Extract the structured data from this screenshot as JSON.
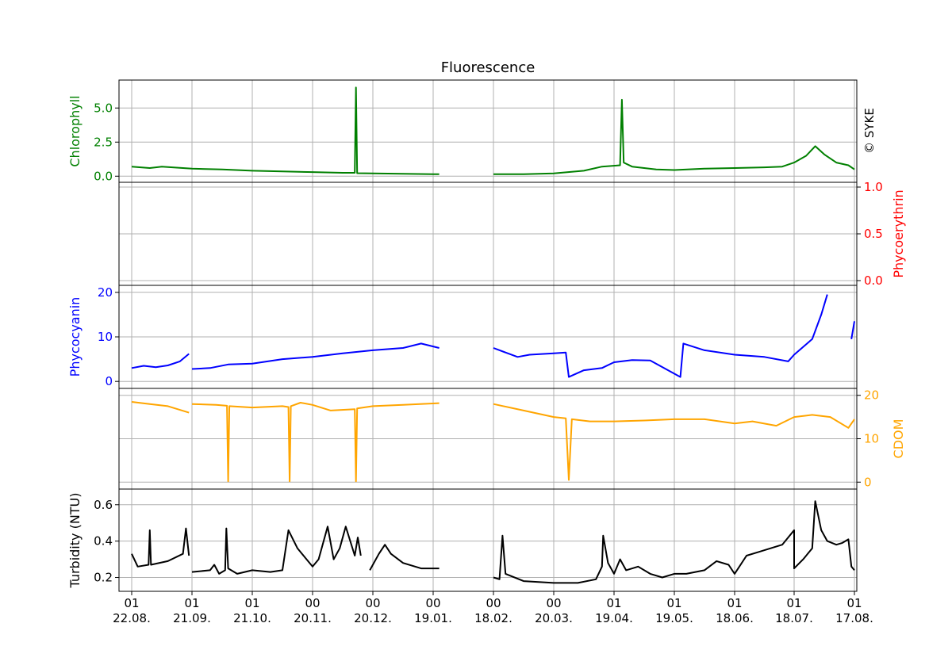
{
  "chart_data": {
    "type": "line",
    "title": "Fluorescence",
    "copyright": "© SYKE",
    "x_ticks": [
      {
        "top": "01",
        "bottom": "22.08."
      },
      {
        "top": "01",
        "bottom": "21.09."
      },
      {
        "top": "01",
        "bottom": "21.10."
      },
      {
        "top": "00",
        "bottom": "20.11."
      },
      {
        "top": "00",
        "bottom": "20.12."
      },
      {
        "top": "00",
        "bottom": "19.01."
      },
      {
        "top": "00",
        "bottom": "18.02."
      },
      {
        "top": "00",
        "bottom": "20.03."
      },
      {
        "top": "01",
        "bottom": "19.04."
      },
      {
        "top": "01",
        "bottom": "19.05."
      },
      {
        "top": "01",
        "bottom": "18.06."
      },
      {
        "top": "01",
        "bottom": "18.07."
      },
      {
        "top": "01",
        "bottom": "17.08."
      }
    ],
    "panels": [
      {
        "name": "Chlorophyll",
        "axis_label": "Chlorophyll",
        "color": "#008000",
        "axis_side": "left",
        "ylim": [
          -0.1,
          6.7
        ],
        "ticks": [
          {
            "v": 0.0,
            "label": "0.0"
          },
          {
            "v": 2.5,
            "label": "2.5"
          },
          {
            "v": 5.0,
            "label": "5.0"
          }
        ],
        "segments": [
          [
            [
              0,
              0.7
            ],
            [
              0.3,
              0.6
            ],
            [
              0.5,
              0.7
            ],
            [
              1.0,
              0.55
            ],
            [
              1.5,
              0.5
            ],
            [
              2.0,
              0.4
            ],
            [
              2.5,
              0.35
            ],
            [
              3.0,
              0.3
            ],
            [
              3.5,
              0.25
            ],
            [
              3.7,
              0.25
            ],
            [
              3.72,
              6.5
            ],
            [
              3.74,
              0.22
            ],
            [
              4.0,
              0.2
            ],
            [
              4.5,
              0.18
            ],
            [
              5.0,
              0.15
            ],
            [
              5.1,
              0.15
            ]
          ],
          [
            [
              6.0,
              0.15
            ],
            [
              6.5,
              0.15
            ],
            [
              7.0,
              0.2
            ],
            [
              7.5,
              0.4
            ],
            [
              7.8,
              0.7
            ],
            [
              8.1,
              0.8
            ],
            [
              8.13,
              5.6
            ],
            [
              8.16,
              1.0
            ],
            [
              8.3,
              0.7
            ],
            [
              8.7,
              0.5
            ],
            [
              9.0,
              0.45
            ],
            [
              9.5,
              0.55
            ],
            [
              10.0,
              0.6
            ],
            [
              10.5,
              0.65
            ],
            [
              10.8,
              0.7
            ],
            [
              11.0,
              1.0
            ],
            [
              11.2,
              1.5
            ],
            [
              11.35,
              2.2
            ],
            [
              11.5,
              1.6
            ],
            [
              11.7,
              1.0
            ],
            [
              11.9,
              0.8
            ],
            [
              12.0,
              0.5
            ]
          ]
        ]
      },
      {
        "name": "Phycoerythrin",
        "axis_label": "Phycoerythrin",
        "color": "#ff0000",
        "axis_side": "right",
        "ylim": [
          0.0,
          1.0
        ],
        "ticks": [
          {
            "v": 0.0,
            "label": "0.0"
          },
          {
            "v": 0.5,
            "label": "0.5"
          },
          {
            "v": 1.0,
            "label": "1.0"
          }
        ],
        "segments": []
      },
      {
        "name": "Phycocyanin",
        "axis_label": "Phycocyanin",
        "color": "#0000ff",
        "axis_side": "left",
        "ylim": [
          -0.5,
          20.5
        ],
        "ticks": [
          {
            "v": 0,
            "label": "0"
          },
          {
            "v": 10,
            "label": "10"
          },
          {
            "v": 20,
            "label": "20"
          }
        ],
        "segments": [
          [
            [
              0,
              3.0
            ],
            [
              0.2,
              3.5
            ],
            [
              0.4,
              3.2
            ],
            [
              0.6,
              3.6
            ],
            [
              0.8,
              4.5
            ],
            [
              0.95,
              6.2
            ]
          ],
          [
            [
              1.0,
              2.8
            ],
            [
              1.3,
              3.0
            ],
            [
              1.6,
              3.8
            ],
            [
              2.0,
              4.0
            ],
            [
              2.5,
              5.0
            ],
            [
              3.0,
              5.5
            ],
            [
              3.5,
              6.3
            ],
            [
              4.0,
              7.0
            ],
            [
              4.5,
              7.5
            ],
            [
              4.8,
              8.5
            ],
            [
              5.1,
              7.5
            ]
          ],
          [
            [
              6.0,
              7.5
            ],
            [
              6.2,
              6.5
            ],
            [
              6.4,
              5.5
            ],
            [
              6.6,
              6.0
            ],
            [
              7.0,
              6.3
            ],
            [
              7.2,
              6.5
            ],
            [
              7.25,
              1.0
            ],
            [
              7.5,
              2.5
            ],
            [
              7.8,
              3.0
            ],
            [
              8.0,
              4.3
            ],
            [
              8.3,
              4.8
            ],
            [
              8.6,
              4.7
            ],
            [
              9.1,
              1.0
            ],
            [
              9.15,
              8.5
            ],
            [
              9.5,
              7.0
            ],
            [
              10.0,
              6.0
            ],
            [
              10.5,
              5.5
            ],
            [
              10.9,
              4.5
            ],
            [
              11.0,
              6.0
            ],
            [
              11.3,
              9.5
            ],
            [
              11.45,
              15.0
            ],
            [
              11.55,
              19.5
            ]
          ],
          [
            [
              11.95,
              9.5
            ],
            [
              12.0,
              13.5
            ]
          ]
        ]
      },
      {
        "name": "CDOM",
        "axis_label": "CDOM",
        "color": "#ffa500",
        "axis_side": "right",
        "ylim": [
          -0.5,
          20.5
        ],
        "ticks": [
          {
            "v": 0,
            "label": "0"
          },
          {
            "v": 10,
            "label": "10"
          },
          {
            "v": 20,
            "label": "20"
          }
        ],
        "segments": [
          [
            [
              0,
              18.5
            ],
            [
              0.3,
              18.0
            ],
            [
              0.6,
              17.5
            ],
            [
              0.95,
              16.0
            ]
          ],
          [
            [
              1.0,
              18.0
            ],
            [
              1.4,
              17.8
            ],
            [
              1.58,
              17.6
            ],
            [
              1.6,
              0.2
            ],
            [
              1.62,
              17.5
            ],
            [
              2.0,
              17.2
            ],
            [
              2.5,
              17.5
            ],
            [
              2.6,
              17.3
            ],
            [
              2.62,
              0.2
            ],
            [
              2.64,
              17.5
            ],
            [
              2.8,
              18.3
            ],
            [
              3.0,
              17.8
            ],
            [
              3.3,
              16.5
            ],
            [
              3.7,
              16.8
            ],
            [
              3.72,
              0.2
            ],
            [
              3.74,
              17.0
            ],
            [
              4.0,
              17.5
            ],
            [
              4.5,
              17.8
            ],
            [
              5.1,
              18.2
            ]
          ],
          [
            [
              6.0,
              18.0
            ],
            [
              6.5,
              16.5
            ],
            [
              7.0,
              15.0
            ],
            [
              7.2,
              14.7
            ],
            [
              7.25,
              0.5
            ],
            [
              7.3,
              14.5
            ],
            [
              7.6,
              14.0
            ],
            [
              8.0,
              14.0
            ],
            [
              8.5,
              14.2
            ],
            [
              9.0,
              14.5
            ],
            [
              9.5,
              14.5
            ],
            [
              10.0,
              13.5
            ],
            [
              10.3,
              14.0
            ],
            [
              10.7,
              13.0
            ],
            [
              11.0,
              15.0
            ],
            [
              11.3,
              15.5
            ],
            [
              11.6,
              15.0
            ],
            [
              11.9,
              12.5
            ],
            [
              12.0,
              14.5
            ]
          ]
        ]
      },
      {
        "name": "Turbidity",
        "axis_label": "Turbidity (NTU)",
        "color": "#000000",
        "axis_side": "left",
        "ylim": [
          0.15,
          0.66
        ],
        "ticks": [
          {
            "v": 0.2,
            "label": "0.2"
          },
          {
            "v": 0.4,
            "label": "0.4"
          },
          {
            "v": 0.6,
            "label": "0.6"
          }
        ],
        "segments": [
          [
            [
              0,
              0.33
            ],
            [
              0.1,
              0.26
            ],
            [
              0.28,
              0.27
            ],
            [
              0.3,
              0.46
            ],
            [
              0.32,
              0.27
            ],
            [
              0.6,
              0.29
            ],
            [
              0.85,
              0.33
            ],
            [
              0.9,
              0.47
            ],
            [
              0.95,
              0.32
            ]
          ],
          [
            [
              1.0,
              0.23
            ],
            [
              1.3,
              0.24
            ],
            [
              1.37,
              0.27
            ],
            [
              1.45,
              0.22
            ],
            [
              1.55,
              0.24
            ],
            [
              1.57,
              0.47
            ],
            [
              1.6,
              0.25
            ],
            [
              1.75,
              0.22
            ],
            [
              2.0,
              0.24
            ],
            [
              2.3,
              0.23
            ],
            [
              2.5,
              0.24
            ],
            [
              2.6,
              0.46
            ],
            [
              2.75,
              0.36
            ],
            [
              2.9,
              0.3
            ],
            [
              3.0,
              0.26
            ],
            [
              3.1,
              0.3
            ],
            [
              3.25,
              0.48
            ],
            [
              3.35,
              0.3
            ],
            [
              3.45,
              0.36
            ],
            [
              3.55,
              0.48
            ],
            [
              3.7,
              0.32
            ],
            [
              3.75,
              0.42
            ],
            [
              3.8,
              0.32
            ]
          ],
          [
            [
              3.95,
              0.24
            ],
            [
              4.1,
              0.33
            ],
            [
              4.2,
              0.38
            ],
            [
              4.3,
              0.33
            ],
            [
              4.5,
              0.28
            ],
            [
              4.8,
              0.25
            ],
            [
              5.1,
              0.25
            ]
          ],
          [
            [
              6.0,
              0.2
            ],
            [
              6.1,
              0.19
            ],
            [
              6.15,
              0.43
            ],
            [
              6.2,
              0.22
            ],
            [
              6.5,
              0.18
            ],
            [
              7.0,
              0.17
            ],
            [
              7.4,
              0.17
            ],
            [
              7.7,
              0.19
            ],
            [
              7.8,
              0.26
            ],
            [
              7.82,
              0.43
            ],
            [
              7.9,
              0.28
            ],
            [
              8.0,
              0.22
            ],
            [
              8.1,
              0.3
            ],
            [
              8.2,
              0.24
            ],
            [
              8.4,
              0.26
            ],
            [
              8.6,
              0.22
            ],
            [
              8.8,
              0.2
            ],
            [
              9.0,
              0.22
            ],
            [
              9.2,
              0.22
            ],
            [
              9.5,
              0.24
            ],
            [
              9.7,
              0.29
            ],
            [
              9.9,
              0.27
            ],
            [
              10.0,
              0.22
            ],
            [
              10.2,
              0.32
            ],
            [
              10.4,
              0.34
            ],
            [
              10.6,
              0.36
            ],
            [
              10.8,
              0.38
            ],
            [
              11.0,
              0.46
            ],
            [
              11.0,
              0.25
            ],
            [
              11.15,
              0.3
            ],
            [
              11.3,
              0.36
            ],
            [
              11.35,
              0.62
            ],
            [
              11.45,
              0.46
            ],
            [
              11.55,
              0.4
            ],
            [
              11.7,
              0.38
            ],
            [
              11.8,
              0.39
            ],
            [
              11.9,
              0.41
            ],
            [
              11.95,
              0.26
            ],
            [
              12.0,
              0.24
            ]
          ]
        ]
      }
    ]
  }
}
